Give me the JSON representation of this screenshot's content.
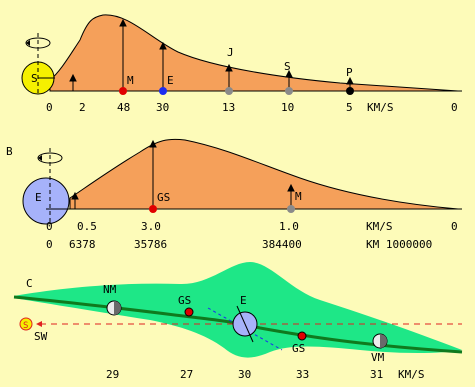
{
  "panel_a": {
    "sun_label": "S",
    "origin_label": "0",
    "speed_labels": [
      "2",
      "48",
      "30",
      "13",
      "10",
      "5",
      "KM/S",
      "0"
    ],
    "planets": [
      {
        "label": "M",
        "color": "#e00000"
      },
      {
        "label": "E",
        "color": "#1c2cf0"
      },
      {
        "label": "J",
        "color": "#8a8a8a"
      },
      {
        "label": "S",
        "color": "#8a8a8a"
      },
      {
        "label": "P",
        "color": "#000000"
      }
    ]
  },
  "panel_b": {
    "panel_label": "B",
    "earth_label": "E",
    "origin_label": "0",
    "points": [
      {
        "label": "GS",
        "color": "#e00000"
      },
      {
        "label": "M",
        "color": "#8a8a8a"
      }
    ],
    "speed_labels": [
      "0.5",
      "3.0",
      "1.0",
      "KM/S",
      "0"
    ],
    "distance_labels": [
      "0",
      "6378",
      "35786",
      "384400",
      "KM 1000000"
    ]
  },
  "panel_c": {
    "panel_label": "C",
    "sun_symbol": "S",
    "sw_label": "SW",
    "labels": {
      "nm": "NM",
      "gs_left": "GS",
      "earth": "E",
      "gs_right": "GS",
      "vm": "VM"
    },
    "speed_labels": [
      "29",
      "27",
      "30",
      "33",
      "31",
      "KM/S"
    ]
  },
  "colors": {
    "background": "#fdfbb9",
    "fill_orange": "#f5a05a",
    "sun_yellow": "#f5f000",
    "earth_blue": "#a6b2fa",
    "band_green": "#1ee787",
    "line_green": "#0f7a1e",
    "red_dash": "#e02020"
  }
}
